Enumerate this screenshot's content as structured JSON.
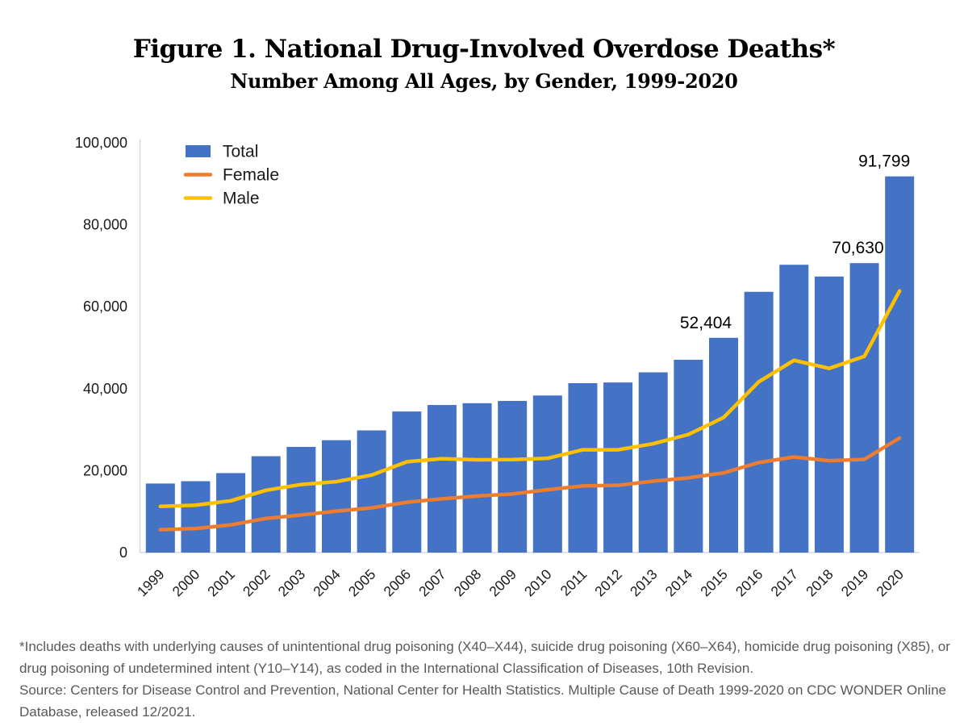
{
  "title": "Figure 1. National Drug-Involved Overdose Deaths*",
  "subtitle": "Number Among All Ages, by Gender, 1999-2020",
  "chart_data": {
    "type": "bar",
    "title": "Figure 1. National Drug-Involved Overdose Deaths*",
    "subtitle": "Number Among All Ages, by Gender, 1999-2020",
    "categories": [
      "1999",
      "2000",
      "2001",
      "2002",
      "2003",
      "2004",
      "2005",
      "2006",
      "2007",
      "2008",
      "2009",
      "2010",
      "2011",
      "2012",
      "2013",
      "2014",
      "2015",
      "2016",
      "2017",
      "2018",
      "2019",
      "2020"
    ],
    "series": [
      {
        "name": "Total",
        "type": "bar",
        "color": "#4472C4",
        "values": [
          16849,
          17415,
          19394,
          23518,
          25785,
          27424,
          29813,
          34425,
          36010,
          36450,
          37004,
          38329,
          41340,
          41502,
          43982,
          47055,
          52404,
          63632,
          70237,
          67367,
          70630,
          91799
        ]
      },
      {
        "name": "Female",
        "type": "line",
        "color": "#ED7D31",
        "values": [
          5591,
          5852,
          6758,
          8324,
          9169,
          10117,
          10908,
          12274,
          13111,
          13806,
          14307,
          15323,
          16264,
          16424,
          17422,
          18243,
          19447,
          21968,
          23325,
          22424,
          22740,
          27951
        ]
      },
      {
        "name": "Male",
        "type": "line",
        "color": "#FFC000",
        "values": [
          11258,
          11563,
          12636,
          15194,
          16616,
          17307,
          18905,
          22151,
          22899,
          22644,
          22697,
          23006,
          25076,
          25078,
          26560,
          28812,
          32957,
          41664,
          46912,
          44943,
          47890,
          63848
        ]
      }
    ],
    "xlabel": "",
    "ylabel": "",
    "ylim": [
      0,
      100000
    ],
    "yticks": [
      0,
      20000,
      40000,
      60000,
      80000,
      100000
    ],
    "ytick_labels": [
      "0",
      "20,000",
      "40,000",
      "60,000",
      "80,000",
      "100,000"
    ],
    "grid": false,
    "legend_position": "top-left",
    "axis_color": "#D9D9D9",
    "tick_label_color": "#1a1a1a",
    "annotations": [
      {
        "year": "2015",
        "label": "52,404"
      },
      {
        "year": "2019",
        "label": "70,630"
      },
      {
        "year": "2020",
        "label": "91,799"
      }
    ]
  },
  "footnote": {
    "note": "*Includes deaths with underlying causes of unintentional drug poisoning (X40–X44), suicide drug poisoning (X60–X64), homicide drug poisoning (X85), or drug poisoning of undetermined intent (Y10–Y14), as coded in the International Classification of Diseases, 10th Revision.",
    "source": "Source: Centers for Disease Control and Prevention, National Center for Health Statistics. Multiple Cause of Death 1999-2020 on CDC WONDER Online Database, released 12/2021."
  }
}
